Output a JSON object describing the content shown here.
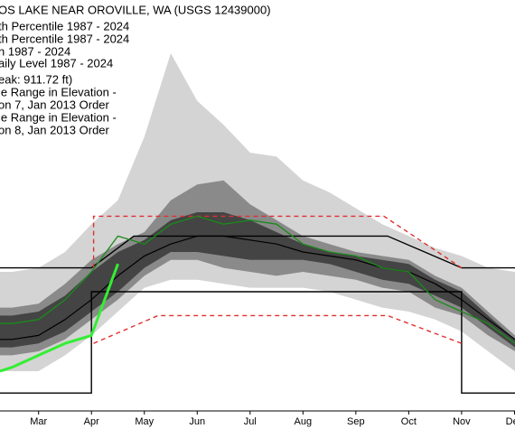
{
  "chart_data": {
    "type": "line",
    "title": "OS LAKE NEAR OROVILLE, WA (USGS 12439000)",
    "legend": [
      "th Percentile 1987 - 2024",
      "th Percentile 1987 - 2024",
      "n 1987 - 2024",
      "aily Level 1987 - 2024",
      "eak: 911.72 ft)",
      "le Range in Elevation -",
      "on 7, Jan 2013 Order",
      "le Range in Elevation -",
      "on 8, Jan 2013 Order"
    ],
    "xlim": [
      2.27,
      12.01
    ],
    "ylim": [
      0,
      100
    ],
    "xticks": [
      {
        "value": 3,
        "label": "Mar"
      },
      {
        "value": 4,
        "label": "Apr"
      },
      {
        "value": 5,
        "label": "May"
      },
      {
        "value": 6,
        "label": "Jun"
      },
      {
        "value": 7,
        "label": "Jul"
      },
      {
        "value": 8,
        "label": "Aug"
      },
      {
        "value": 9,
        "label": "Sep"
      },
      {
        "value": 10,
        "label": "Oct"
      },
      {
        "value": 11,
        "label": "Nov"
      },
      {
        "value": 12,
        "label": "Dec"
      }
    ],
    "x": [
      2.27,
      2.5,
      3,
      3.5,
      4,
      4.5,
      5,
      5.5,
      6,
      6.5,
      7,
      7.5,
      8,
      8.5,
      9,
      9.5,
      10,
      10.5,
      11,
      11.5,
      12.01
    ],
    "bands": [
      {
        "color": "#d4d4d4",
        "upper": [
          35,
          35,
          36,
          40,
          47,
          53,
          69,
          90,
          78,
          72,
          65,
          64,
          58,
          55,
          51,
          47,
          44,
          41,
          39,
          36,
          35
        ],
        "lower": [
          10,
          10,
          10,
          14,
          19,
          25,
          31,
          33,
          33,
          32,
          31,
          31,
          31,
          30,
          28,
          26,
          25,
          23,
          20,
          15,
          10
        ]
      },
      {
        "color": "#8a8a8a",
        "upper": [
          26,
          26,
          27,
          32,
          38,
          42,
          45,
          53,
          57,
          58,
          52,
          48,
          44,
          42,
          40,
          39,
          38,
          34,
          31,
          25,
          19
        ],
        "lower": [
          14,
          14,
          15,
          18,
          23,
          28,
          34,
          38,
          38,
          36,
          35,
          34,
          35,
          34,
          33,
          31,
          30,
          26,
          24,
          19,
          15
        ]
      },
      {
        "color": "#444444",
        "upper": [
          24,
          24,
          25,
          29,
          35,
          40,
          43,
          48,
          50,
          50,
          48,
          45,
          42,
          40,
          39,
          38,
          37,
          33,
          30,
          24,
          18
        ],
        "lower": [
          16,
          16,
          17,
          20,
          25,
          30,
          36,
          40,
          40,
          39,
          38,
          38,
          38,
          37,
          35,
          33,
          32,
          29,
          26,
          21,
          16
        ]
      }
    ],
    "series": [
      {
        "color": "#000000",
        "width": 1.2,
        "values": [
          18,
          18,
          19,
          23,
          28,
          34,
          39,
          42,
          44,
          44,
          43,
          42,
          40,
          39,
          38,
          36,
          35,
          32,
          28,
          23,
          18
        ]
      },
      {
        "color": "#1a8a1a",
        "width": 1.3,
        "values": [
          22,
          22,
          23,
          28,
          35,
          44,
          42,
          47,
          49,
          47,
          48,
          47,
          42,
          40,
          39,
          36,
          35,
          28,
          25,
          22,
          17
        ]
      },
      {
        "color": "#33ee33",
        "width": 3,
        "values": [
          10,
          11,
          14,
          17,
          19,
          37,
          null,
          null,
          null,
          null,
          null,
          null,
          null,
          null,
          null,
          null,
          null,
          null,
          null,
          null,
          null
        ]
      }
    ],
    "ranges": [
      {
        "color": "#000000",
        "dash": false,
        "x": [
          2.27,
          4.0,
          4.8,
          9.6,
          11.0,
          12.01
        ],
        "values": [
          36,
          36,
          44,
          44,
          36,
          36
        ]
      },
      {
        "color": "#000000",
        "dash": false,
        "x": [
          2.27,
          4.0,
          4.0,
          11.0,
          11.0,
          12.01
        ],
        "values": [
          4.5,
          4.5,
          30,
          30,
          4.5,
          4.5
        ]
      },
      {
        "color": "#e03030",
        "dash": true,
        "x": [
          4.04,
          4.04,
          9.53,
          11.0
        ],
        "values": [
          36,
          49,
          49,
          36
        ]
      },
      {
        "color": "#e03030",
        "dash": true,
        "x": [
          4.04,
          5.26,
          9.6,
          11.0
        ],
        "values": [
          17,
          24,
          24,
          17
        ]
      }
    ]
  }
}
